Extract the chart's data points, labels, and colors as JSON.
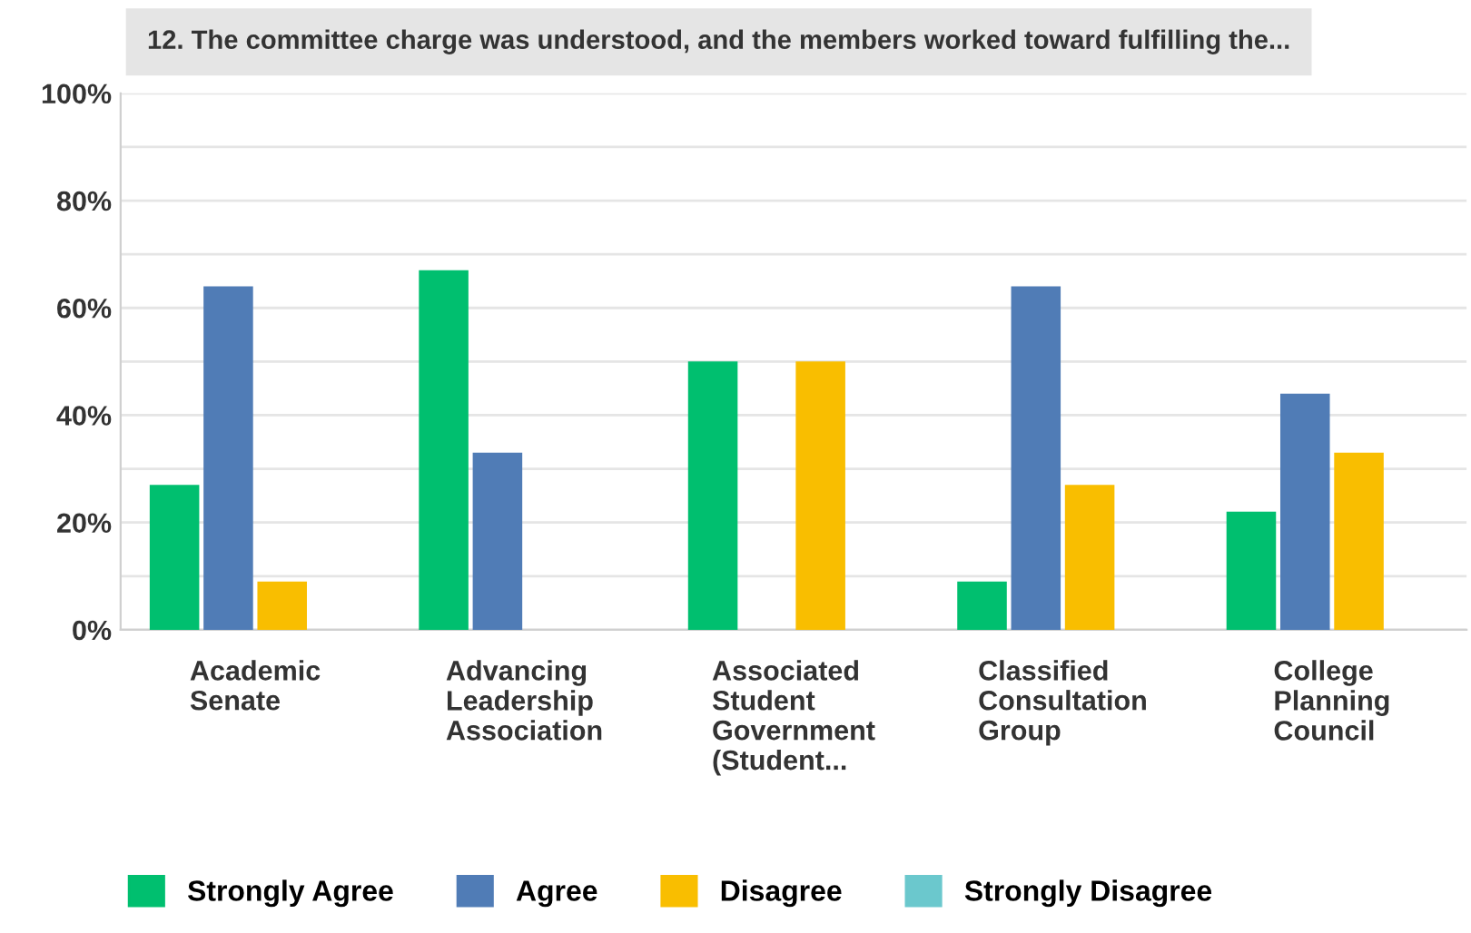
{
  "chart_data": {
    "type": "bar",
    "title": "12. The committee charge was understood, and the members worked toward fulfilling the...",
    "categories": [
      "Academic Senate",
      "Advancing Leadership Association",
      "Associated Student Government (Student...",
      "Classified Consultation Group",
      "College Planning Council"
    ],
    "series": [
      {
        "name": "Strongly Agree",
        "color": "#00bf6f",
        "values": [
          27,
          67,
          50,
          9,
          22
        ]
      },
      {
        "name": "Agree",
        "color": "#507cb6",
        "values": [
          64,
          33,
          0,
          64,
          44
        ]
      },
      {
        "name": "Disagree",
        "color": "#f9be00",
        "values": [
          9,
          0,
          50,
          27,
          33
        ]
      },
      {
        "name": "Strongly Disagree",
        "color": "#6bc8cd",
        "values": [
          0,
          0,
          0,
          0,
          0
        ]
      }
    ],
    "ylim": [
      0,
      100
    ],
    "yticks": [
      {
        "value": 0,
        "label": "0%"
      },
      {
        "value": 10,
        "label": null
      },
      {
        "value": 20,
        "label": "20%"
      },
      {
        "value": 30,
        "label": null
      },
      {
        "value": 40,
        "label": "40%"
      },
      {
        "value": 50,
        "label": null
      },
      {
        "value": 60,
        "label": "60%"
      },
      {
        "value": 70,
        "label": null
      },
      {
        "value": 80,
        "label": "80%"
      },
      {
        "value": 90,
        "label": null
      },
      {
        "value": 100,
        "label": "100%"
      }
    ],
    "grid": "y",
    "legend": "bottom"
  }
}
